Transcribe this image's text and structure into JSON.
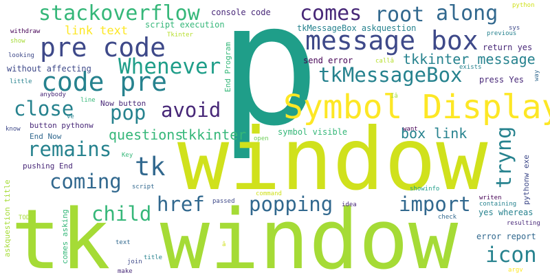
{
  "words": [
    {
      "text": "p",
      "color": "#1f9e89"
    },
    {
      "text": "window",
      "color": "#d0e11c"
    },
    {
      "text": "tk window",
      "color": "#a5db36"
    },
    {
      "text": "Symbol Display",
      "color": "#fde725"
    },
    {
      "text": "message box",
      "color": "#3e4989"
    },
    {
      "text": "pre code",
      "color": "#3e4989"
    },
    {
      "text": "code pre",
      "color": "#26828e"
    },
    {
      "text": "stackoverflow",
      "color": "#35b779"
    },
    {
      "text": "comes",
      "color": "#482878"
    },
    {
      "text": "root",
      "color": "#31688e"
    },
    {
      "text": "along",
      "color": "#31688e"
    },
    {
      "text": "Whenever",
      "color": "#1f9e89"
    },
    {
      "text": "tkMessageBox",
      "color": "#26828e"
    },
    {
      "text": "tkkinter message",
      "color": "#26828e"
    },
    {
      "text": "close",
      "color": "#26828e"
    },
    {
      "text": "pop",
      "color": "#26828e"
    },
    {
      "text": "avoid",
      "color": "#482878"
    },
    {
      "text": "remains",
      "color": "#26828e"
    },
    {
      "text": "questions",
      "color": "#35b779"
    },
    {
      "text": "tkkinter",
      "color": "#35b779"
    },
    {
      "text": "tk",
      "color": "#31688e"
    },
    {
      "text": "coming",
      "color": "#31688e"
    },
    {
      "text": "href",
      "color": "#31688e"
    },
    {
      "text": "popping",
      "color": "#31688e"
    },
    {
      "text": "import",
      "color": "#31688e"
    },
    {
      "text": "child",
      "color": "#35b779"
    },
    {
      "text": "tryng",
      "color": "#26828e"
    },
    {
      "text": "box link",
      "color": "#26828e"
    },
    {
      "text": "icon",
      "color": "#26828e"
    },
    {
      "text": "link text",
      "color": "#fde725"
    },
    {
      "text": "console code",
      "color": "#482878"
    },
    {
      "text": "script execution",
      "color": "#35b779"
    },
    {
      "text": "tkMessageBox askquestion",
      "color": "#26828e"
    },
    {
      "text": "without affecting",
      "color": "#3e4989"
    },
    {
      "text": "send error",
      "color": "#440154"
    },
    {
      "text": "return yes",
      "color": "#482878"
    },
    {
      "text": "press Yes",
      "color": "#482878"
    },
    {
      "text": "Now button",
      "color": "#482878"
    },
    {
      "text": "button pythonw",
      "color": "#482878"
    },
    {
      "text": "End Now",
      "color": "#31688e"
    },
    {
      "text": "pushing End",
      "color": "#482878"
    },
    {
      "text": "symbol visible",
      "color": "#35b779"
    },
    {
      "text": "yes whereas",
      "color": "#26828e"
    },
    {
      "text": "error report",
      "color": "#31688e"
    },
    {
      "text": "comes asking",
      "color": "#35b779"
    },
    {
      "text": "askquestion title",
      "color": "#a5db36"
    },
    {
      "text": "End Program",
      "color": "#35b779"
    },
    {
      "text": "pythonw exe",
      "color": "#3e4989"
    },
    {
      "text": "Tkinter",
      "color": "#b5de2b"
    },
    {
      "text": "withdraw",
      "color": "#440154"
    },
    {
      "text": "show",
      "color": "#a5db36"
    },
    {
      "text": "looking",
      "color": "#3e4989"
    },
    {
      "text": "little",
      "color": "#26828e"
    },
    {
      "text": "anybody",
      "color": "#482878"
    },
    {
      "text": "line",
      "color": "#35b779"
    },
    {
      "text": "ve",
      "color": "#26828e"
    },
    {
      "text": "know",
      "color": "#3e4989"
    },
    {
      "text": "Key",
      "color": "#35b779"
    },
    {
      "text": "script",
      "color": "#31688e"
    },
    {
      "text": "TODO",
      "color": "#a5db36"
    },
    {
      "text": "text",
      "color": "#31688e"
    },
    {
      "text": "join",
      "color": "#3e4989"
    },
    {
      "text": "make",
      "color": "#482878"
    },
    {
      "text": "title",
      "color": "#26828e"
    },
    {
      "text": "exists",
      "color": "#26828e"
    },
    {
      "text": "previous",
      "color": "#26828e"
    },
    {
      "text": "sys",
      "color": "#3e4989"
    },
    {
      "text": "python",
      "color": "#d0e11c"
    },
    {
      "text": "way",
      "color": "#31688e"
    },
    {
      "text": "want",
      "color": "#440154"
    },
    {
      "text": "showinfo",
      "color": "#1f9e89"
    },
    {
      "text": "idea",
      "color": "#482878"
    },
    {
      "text": "command",
      "color": "#d0e11c"
    },
    {
      "text": "passed",
      "color": "#3e4989"
    },
    {
      "text": "writen",
      "color": "#440154"
    },
    {
      "text": "containing",
      "color": "#26828e"
    },
    {
      "text": "resulting",
      "color": "#482878"
    },
    {
      "text": "check",
      "color": "#31688e"
    },
    {
      "text": "argv",
      "color": "#fde725"
    },
    {
      "text": "callâ",
      "color": "#b5de2b"
    },
    {
      "text": "Iâ",
      "color": "#a5db36"
    },
    {
      "text": "open",
      "color": "#6ece58"
    },
    {
      "text": "â",
      "color": "#d0e11c"
    }
  ]
}
